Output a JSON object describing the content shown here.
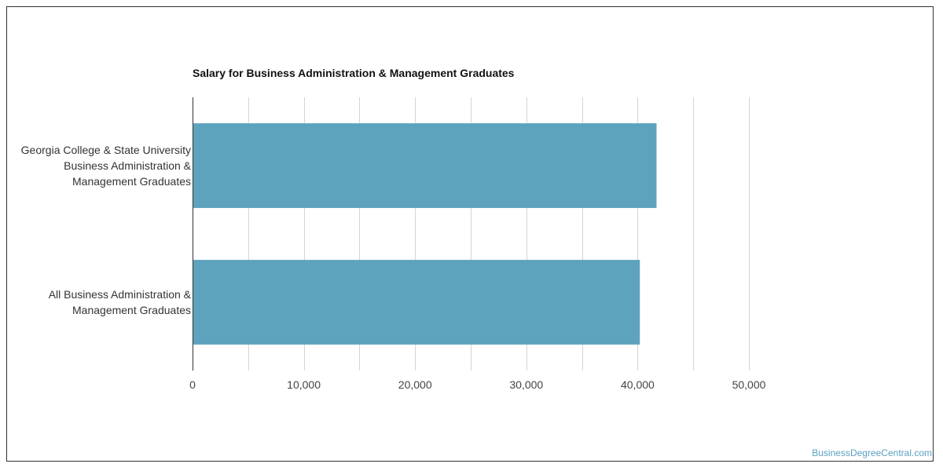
{
  "chart_data": {
    "type": "bar",
    "orientation": "horizontal",
    "title": "Salary for Business Administration & Management Graduates",
    "categories": [
      [
        "Georgia College & State University",
        "Business Administration &",
        "Management Graduates"
      ],
      [
        "All Business Administration &",
        "Management Graduates"
      ]
    ],
    "values": [
      41700,
      40200
    ],
    "xlim": [
      0,
      50000
    ],
    "xticks": [
      0,
      10000,
      20000,
      30000,
      40000,
      50000
    ],
    "xtick_labels": [
      "0",
      "10,000",
      "20,000",
      "30,000",
      "40,000",
      "50,000"
    ],
    "grid": true,
    "bar_color": "#5ea3be",
    "xlabel": "",
    "ylabel": ""
  },
  "watermark": "BusinessDegreeCentral.com"
}
